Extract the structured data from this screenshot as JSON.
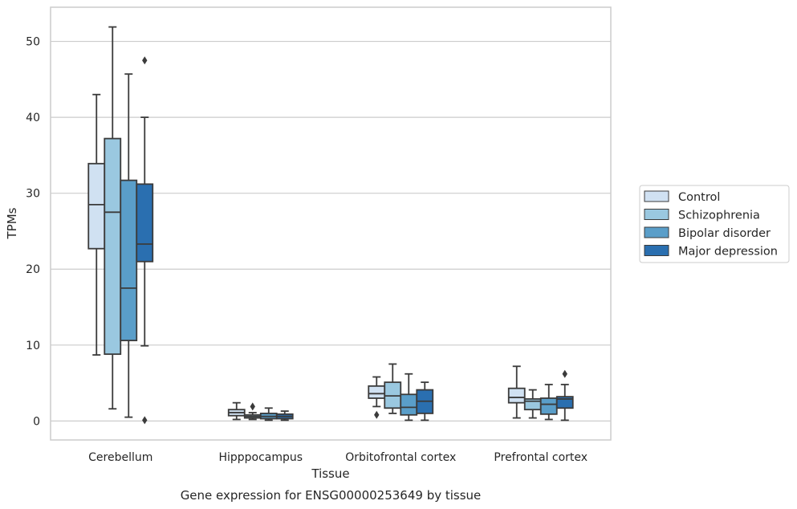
{
  "chart_data": {
    "type": "box",
    "caption": "Gene expression for ENSG00000253649 by tissue",
    "xlabel": "Tissue",
    "ylabel": "TPMs",
    "ylim": [
      -2.5,
      54.5
    ],
    "yticks": [
      0,
      10,
      20,
      30,
      40,
      50
    ],
    "grid": "horizontal",
    "legend_position": "right",
    "categories": [
      "Cerebellum",
      "Hipppocampus",
      "Orbitofrontal cortex",
      "Prefrontal cortex"
    ],
    "series": [
      {
        "name": "Control",
        "color": "#d0e1f2",
        "boxes": [
          {
            "whislo": 8.7,
            "q1": 22.7,
            "med": 28.5,
            "q3": 33.9,
            "whishi": 43.0,
            "fliers": []
          },
          {
            "whislo": 0.2,
            "q1": 0.7,
            "med": 1.1,
            "q3": 1.5,
            "whishi": 2.4,
            "fliers": []
          },
          {
            "whislo": 1.9,
            "q1": 3.0,
            "med": 3.6,
            "q3": 4.6,
            "whishi": 5.8,
            "fliers": [
              0.8
            ]
          },
          {
            "whislo": 0.4,
            "q1": 2.4,
            "med": 3.1,
            "q3": 4.3,
            "whishi": 7.2,
            "fliers": []
          }
        ]
      },
      {
        "name": "Schizophrenia",
        "color": "#9ac8e0",
        "boxes": [
          {
            "whislo": 1.6,
            "q1": 8.8,
            "med": 27.5,
            "q3": 37.2,
            "whishi": 51.9,
            "fliers": []
          },
          {
            "whislo": 0.2,
            "q1": 0.4,
            "med": 0.6,
            "q3": 0.8,
            "whishi": 1.1,
            "fliers": [
              1.9
            ]
          },
          {
            "whislo": 1.0,
            "q1": 1.7,
            "med": 3.3,
            "q3": 5.1,
            "whishi": 7.5,
            "fliers": []
          },
          {
            "whislo": 0.4,
            "q1": 1.5,
            "med": 2.6,
            "q3": 2.9,
            "whishi": 4.1,
            "fliers": []
          }
        ]
      },
      {
        "name": "Bipolar disorder",
        "color": "#5a9ec9",
        "boxes": [
          {
            "whislo": 0.5,
            "q1": 10.6,
            "med": 17.5,
            "q3": 31.7,
            "whishi": 45.7,
            "fliers": []
          },
          {
            "whislo": 0.1,
            "q1": 0.3,
            "med": 0.6,
            "q3": 1.0,
            "whishi": 1.7,
            "fliers": []
          },
          {
            "whislo": 0.1,
            "q1": 0.8,
            "med": 1.8,
            "q3": 3.5,
            "whishi": 6.2,
            "fliers": []
          },
          {
            "whislo": 0.2,
            "q1": 0.9,
            "med": 2.2,
            "q3": 3.0,
            "whishi": 4.8,
            "fliers": []
          }
        ]
      },
      {
        "name": "Major depression",
        "color": "#2a6fb0",
        "boxes": [
          {
            "whislo": 9.9,
            "q1": 21.0,
            "med": 23.3,
            "q3": 31.2,
            "whishi": 40.0,
            "fliers": [
              0.1,
              47.5
            ]
          },
          {
            "whislo": 0.1,
            "q1": 0.3,
            "med": 0.6,
            "q3": 0.9,
            "whishi": 1.3,
            "fliers": []
          },
          {
            "whislo": 0.1,
            "q1": 1.0,
            "med": 2.6,
            "q3": 4.1,
            "whishi": 5.1,
            "fliers": []
          },
          {
            "whislo": 0.1,
            "q1": 1.7,
            "med": 2.9,
            "q3": 3.2,
            "whishi": 4.8,
            "fliers": [
              6.2
            ]
          }
        ]
      }
    ]
  }
}
